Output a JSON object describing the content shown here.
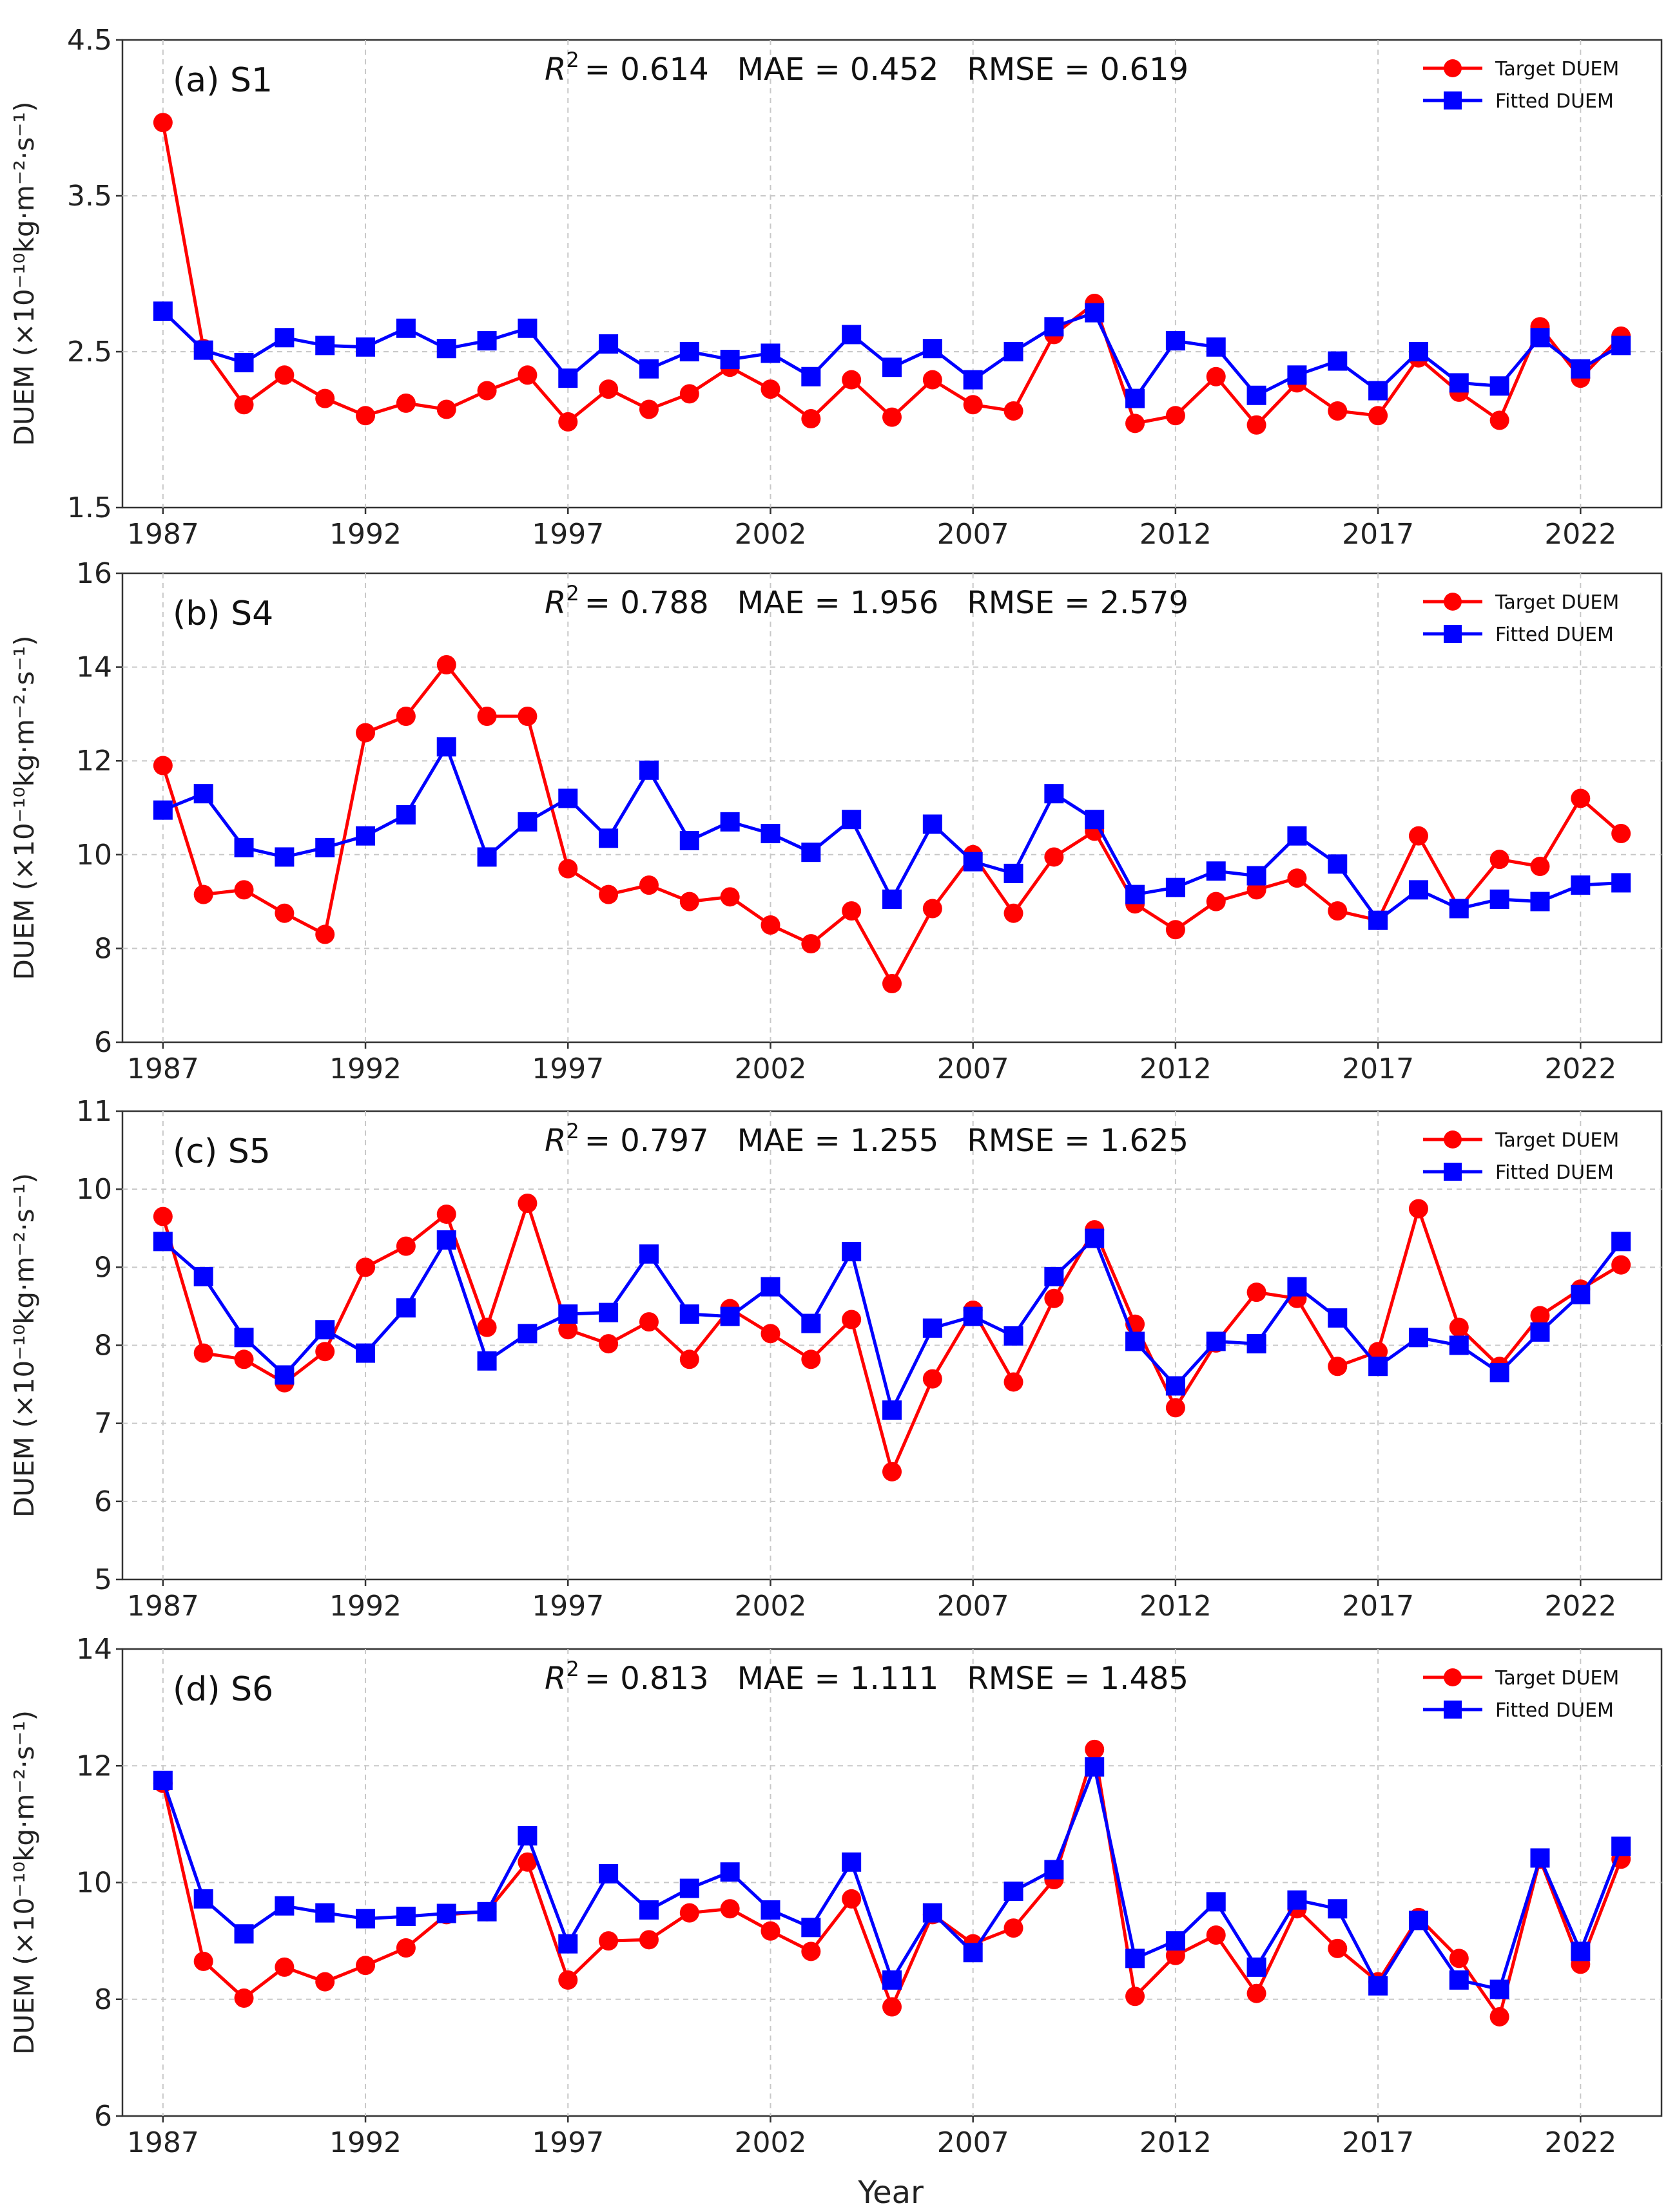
{
  "figure": {
    "xlabel": "Year",
    "ylabel": "DUEM (×10⁻¹⁰kg·m⁻²·s⁻¹)"
  },
  "colors": {
    "target": "#ff0000",
    "fitted": "#0000ff",
    "grid": "#c8c8c8",
    "axis": "#333333"
  },
  "chart_data": [
    {
      "type": "line",
      "title": "(a) S1",
      "metrics": {
        "r2_label": "R",
        "r2_exp": "2",
        "r2": "= 0.614",
        "mae": "MAE = 0.452",
        "rmse": "RMSE = 0.619"
      },
      "ylim": [
        1.5,
        4.5
      ],
      "yticks": [
        "1.5",
        "2.5",
        "3.5",
        "4.5"
      ],
      "xticks": [
        "1987",
        "1992",
        "1997",
        "2002",
        "2007",
        "2012",
        "2017",
        "2022"
      ],
      "x": [
        1987,
        1988,
        1989,
        1990,
        1991,
        1992,
        1993,
        1994,
        1995,
        1996,
        1997,
        1998,
        1999,
        2000,
        2001,
        2002,
        2003,
        2004,
        2005,
        2006,
        2007,
        2008,
        2009,
        2010,
        2011,
        2012,
        2013,
        2014,
        2015,
        2016,
        2017,
        2018,
        2019,
        2020,
        2021,
        2022,
        2023
      ],
      "series": [
        {
          "name": "Target DUEM",
          "marker": "circle",
          "values": [
            3.97,
            2.52,
            2.16,
            2.35,
            2.2,
            2.09,
            2.17,
            2.13,
            2.25,
            2.35,
            2.05,
            2.26,
            2.13,
            2.23,
            2.4,
            2.26,
            2.07,
            2.32,
            2.08,
            2.32,
            2.16,
            2.12,
            2.61,
            2.81,
            2.04,
            2.09,
            2.34,
            2.03,
            2.3,
            2.12,
            2.09,
            2.46,
            2.24,
            2.06,
            2.66,
            2.33,
            2.6
          ]
        },
        {
          "name": "Fitted DUEM",
          "marker": "square",
          "values": [
            2.76,
            2.51,
            2.43,
            2.59,
            2.54,
            2.53,
            2.65,
            2.52,
            2.57,
            2.65,
            2.33,
            2.55,
            2.39,
            2.5,
            2.45,
            2.49,
            2.34,
            2.61,
            2.4,
            2.52,
            2.32,
            2.5,
            2.66,
            2.75,
            2.2,
            2.57,
            2.53,
            2.22,
            2.35,
            2.44,
            2.25,
            2.5,
            2.3,
            2.28,
            2.59,
            2.39,
            2.54
          ]
        }
      ]
    },
    {
      "type": "line",
      "title": "(b) S4",
      "metrics": {
        "r2_label": "R",
        "r2_exp": "2",
        "r2": "= 0.788",
        "mae": "MAE = 1.956",
        "rmse": "RMSE = 2.579"
      },
      "ylim": [
        6,
        16
      ],
      "yticks": [
        "6",
        "8",
        "10",
        "12",
        "14",
        "16"
      ],
      "xticks": [
        "1987",
        "1992",
        "1997",
        "2002",
        "2007",
        "2012",
        "2017",
        "2022"
      ],
      "x": [
        1987,
        1988,
        1989,
        1990,
        1991,
        1992,
        1993,
        1994,
        1995,
        1996,
        1997,
        1998,
        1999,
        2000,
        2001,
        2002,
        2003,
        2004,
        2005,
        2006,
        2007,
        2008,
        2009,
        2010,
        2011,
        2012,
        2013,
        2014,
        2015,
        2016,
        2017,
        2018,
        2019,
        2020,
        2021,
        2022,
        2023
      ],
      "series": [
        {
          "name": "Target DUEM",
          "marker": "circle",
          "values": [
            11.9,
            9.15,
            9.25,
            8.75,
            8.3,
            12.6,
            12.95,
            14.05,
            12.95,
            12.95,
            9.7,
            9.15,
            9.35,
            9.0,
            9.1,
            8.5,
            8.1,
            8.8,
            7.25,
            8.85,
            10.0,
            8.75,
            9.95,
            10.5,
            8.95,
            8.4,
            9.0,
            9.25,
            9.5,
            8.8,
            8.6,
            10.4,
            8.85,
            9.9,
            9.75,
            11.2,
            10.45
          ]
        },
        {
          "name": "Fitted DUEM",
          "marker": "square",
          "values": [
            10.95,
            11.3,
            10.15,
            9.95,
            10.15,
            10.4,
            10.85,
            12.3,
            9.95,
            10.7,
            11.2,
            10.35,
            11.8,
            10.3,
            10.7,
            10.45,
            10.05,
            10.75,
            9.05,
            10.65,
            9.85,
            9.6,
            11.3,
            10.75,
            9.15,
            9.3,
            9.65,
            9.55,
            10.4,
            9.8,
            8.6,
            9.25,
            8.85,
            9.05,
            9.0,
            9.35,
            9.4
          ]
        }
      ]
    },
    {
      "type": "line",
      "title": "(c) S5",
      "metrics": {
        "r2_label": "R",
        "r2_exp": "2",
        "r2": "= 0.797",
        "mae": "MAE = 1.255",
        "rmse": "RMSE = 1.625"
      },
      "ylim": [
        5,
        11
      ],
      "yticks": [
        "5",
        "6",
        "7",
        "8",
        "9",
        "10",
        "11"
      ],
      "xticks": [
        "1987",
        "1992",
        "1997",
        "2002",
        "2007",
        "2012",
        "2017",
        "2022"
      ],
      "x": [
        1987,
        1988,
        1989,
        1990,
        1991,
        1992,
        1993,
        1994,
        1995,
        1996,
        1997,
        1998,
        1999,
        2000,
        2001,
        2002,
        2003,
        2004,
        2005,
        2006,
        2007,
        2008,
        2009,
        2010,
        2011,
        2012,
        2013,
        2014,
        2015,
        2016,
        2017,
        2018,
        2019,
        2020,
        2021,
        2022,
        2023
      ],
      "series": [
        {
          "name": "Target DUEM",
          "marker": "circle",
          "values": [
            9.65,
            7.9,
            7.82,
            7.52,
            7.92,
            9.0,
            9.27,
            9.68,
            8.23,
            9.82,
            8.2,
            8.02,
            8.3,
            7.82,
            8.47,
            8.15,
            7.82,
            8.33,
            6.38,
            7.57,
            8.45,
            7.53,
            8.6,
            9.48,
            8.27,
            7.2,
            8.03,
            8.68,
            8.6,
            7.73,
            7.92,
            9.75,
            8.23,
            7.73,
            8.38,
            8.72,
            9.03
          ]
        },
        {
          "name": "Fitted DUEM",
          "marker": "square",
          "values": [
            9.33,
            8.88,
            8.1,
            7.62,
            8.2,
            7.9,
            8.48,
            9.35,
            7.8,
            8.15,
            8.4,
            8.42,
            9.17,
            8.4,
            8.37,
            8.75,
            8.28,
            9.2,
            7.17,
            8.22,
            8.37,
            8.12,
            8.88,
            9.37,
            8.05,
            7.48,
            8.05,
            8.02,
            8.75,
            8.35,
            7.73,
            8.1,
            8.0,
            7.65,
            8.17,
            8.65,
            9.33
          ]
        }
      ]
    },
    {
      "type": "line",
      "title": "(d) S6",
      "metrics": {
        "r2_label": "R",
        "r2_exp": "2",
        "r2": "= 0.813",
        "mae": "MAE = 1.111",
        "rmse": "RMSE = 1.485"
      },
      "ylim": [
        6,
        14
      ],
      "yticks": [
        "6",
        "8",
        "10",
        "12",
        "14"
      ],
      "xticks": [
        "1987",
        "1992",
        "1997",
        "2002",
        "2007",
        "2012",
        "2017",
        "2022"
      ],
      "x": [
        1987,
        1988,
        1989,
        1990,
        1991,
        1992,
        1993,
        1994,
        1995,
        1996,
        1997,
        1998,
        1999,
        2000,
        2001,
        2002,
        2003,
        2004,
        2005,
        2006,
        2007,
        2008,
        2009,
        2010,
        2011,
        2012,
        2013,
        2014,
        2015,
        2016,
        2017,
        2018,
        2019,
        2020,
        2021,
        2022,
        2023
      ],
      "series": [
        {
          "name": "Target DUEM",
          "marker": "circle",
          "values": [
            11.7,
            8.65,
            8.02,
            8.55,
            8.3,
            8.58,
            8.88,
            9.45,
            9.5,
            10.35,
            8.33,
            9.0,
            9.02,
            9.48,
            9.55,
            9.17,
            8.82,
            9.72,
            7.87,
            9.45,
            8.95,
            9.22,
            10.05,
            12.28,
            8.05,
            8.75,
            9.1,
            8.1,
            9.55,
            8.87,
            8.3,
            9.4,
            8.7,
            7.7,
            10.4,
            8.6,
            10.4
          ]
        },
        {
          "name": "Fitted DUEM",
          "marker": "square",
          "values": [
            11.75,
            9.72,
            9.12,
            9.6,
            9.48,
            9.38,
            9.42,
            9.47,
            9.5,
            10.8,
            8.95,
            10.15,
            9.53,
            9.9,
            10.18,
            9.53,
            9.23,
            10.35,
            8.33,
            9.48,
            8.8,
            9.85,
            10.22,
            11.98,
            8.7,
            9.0,
            9.67,
            8.55,
            9.7,
            9.55,
            8.23,
            9.35,
            8.33,
            8.17,
            10.42,
            8.82,
            10.62
          ]
        }
      ]
    }
  ]
}
